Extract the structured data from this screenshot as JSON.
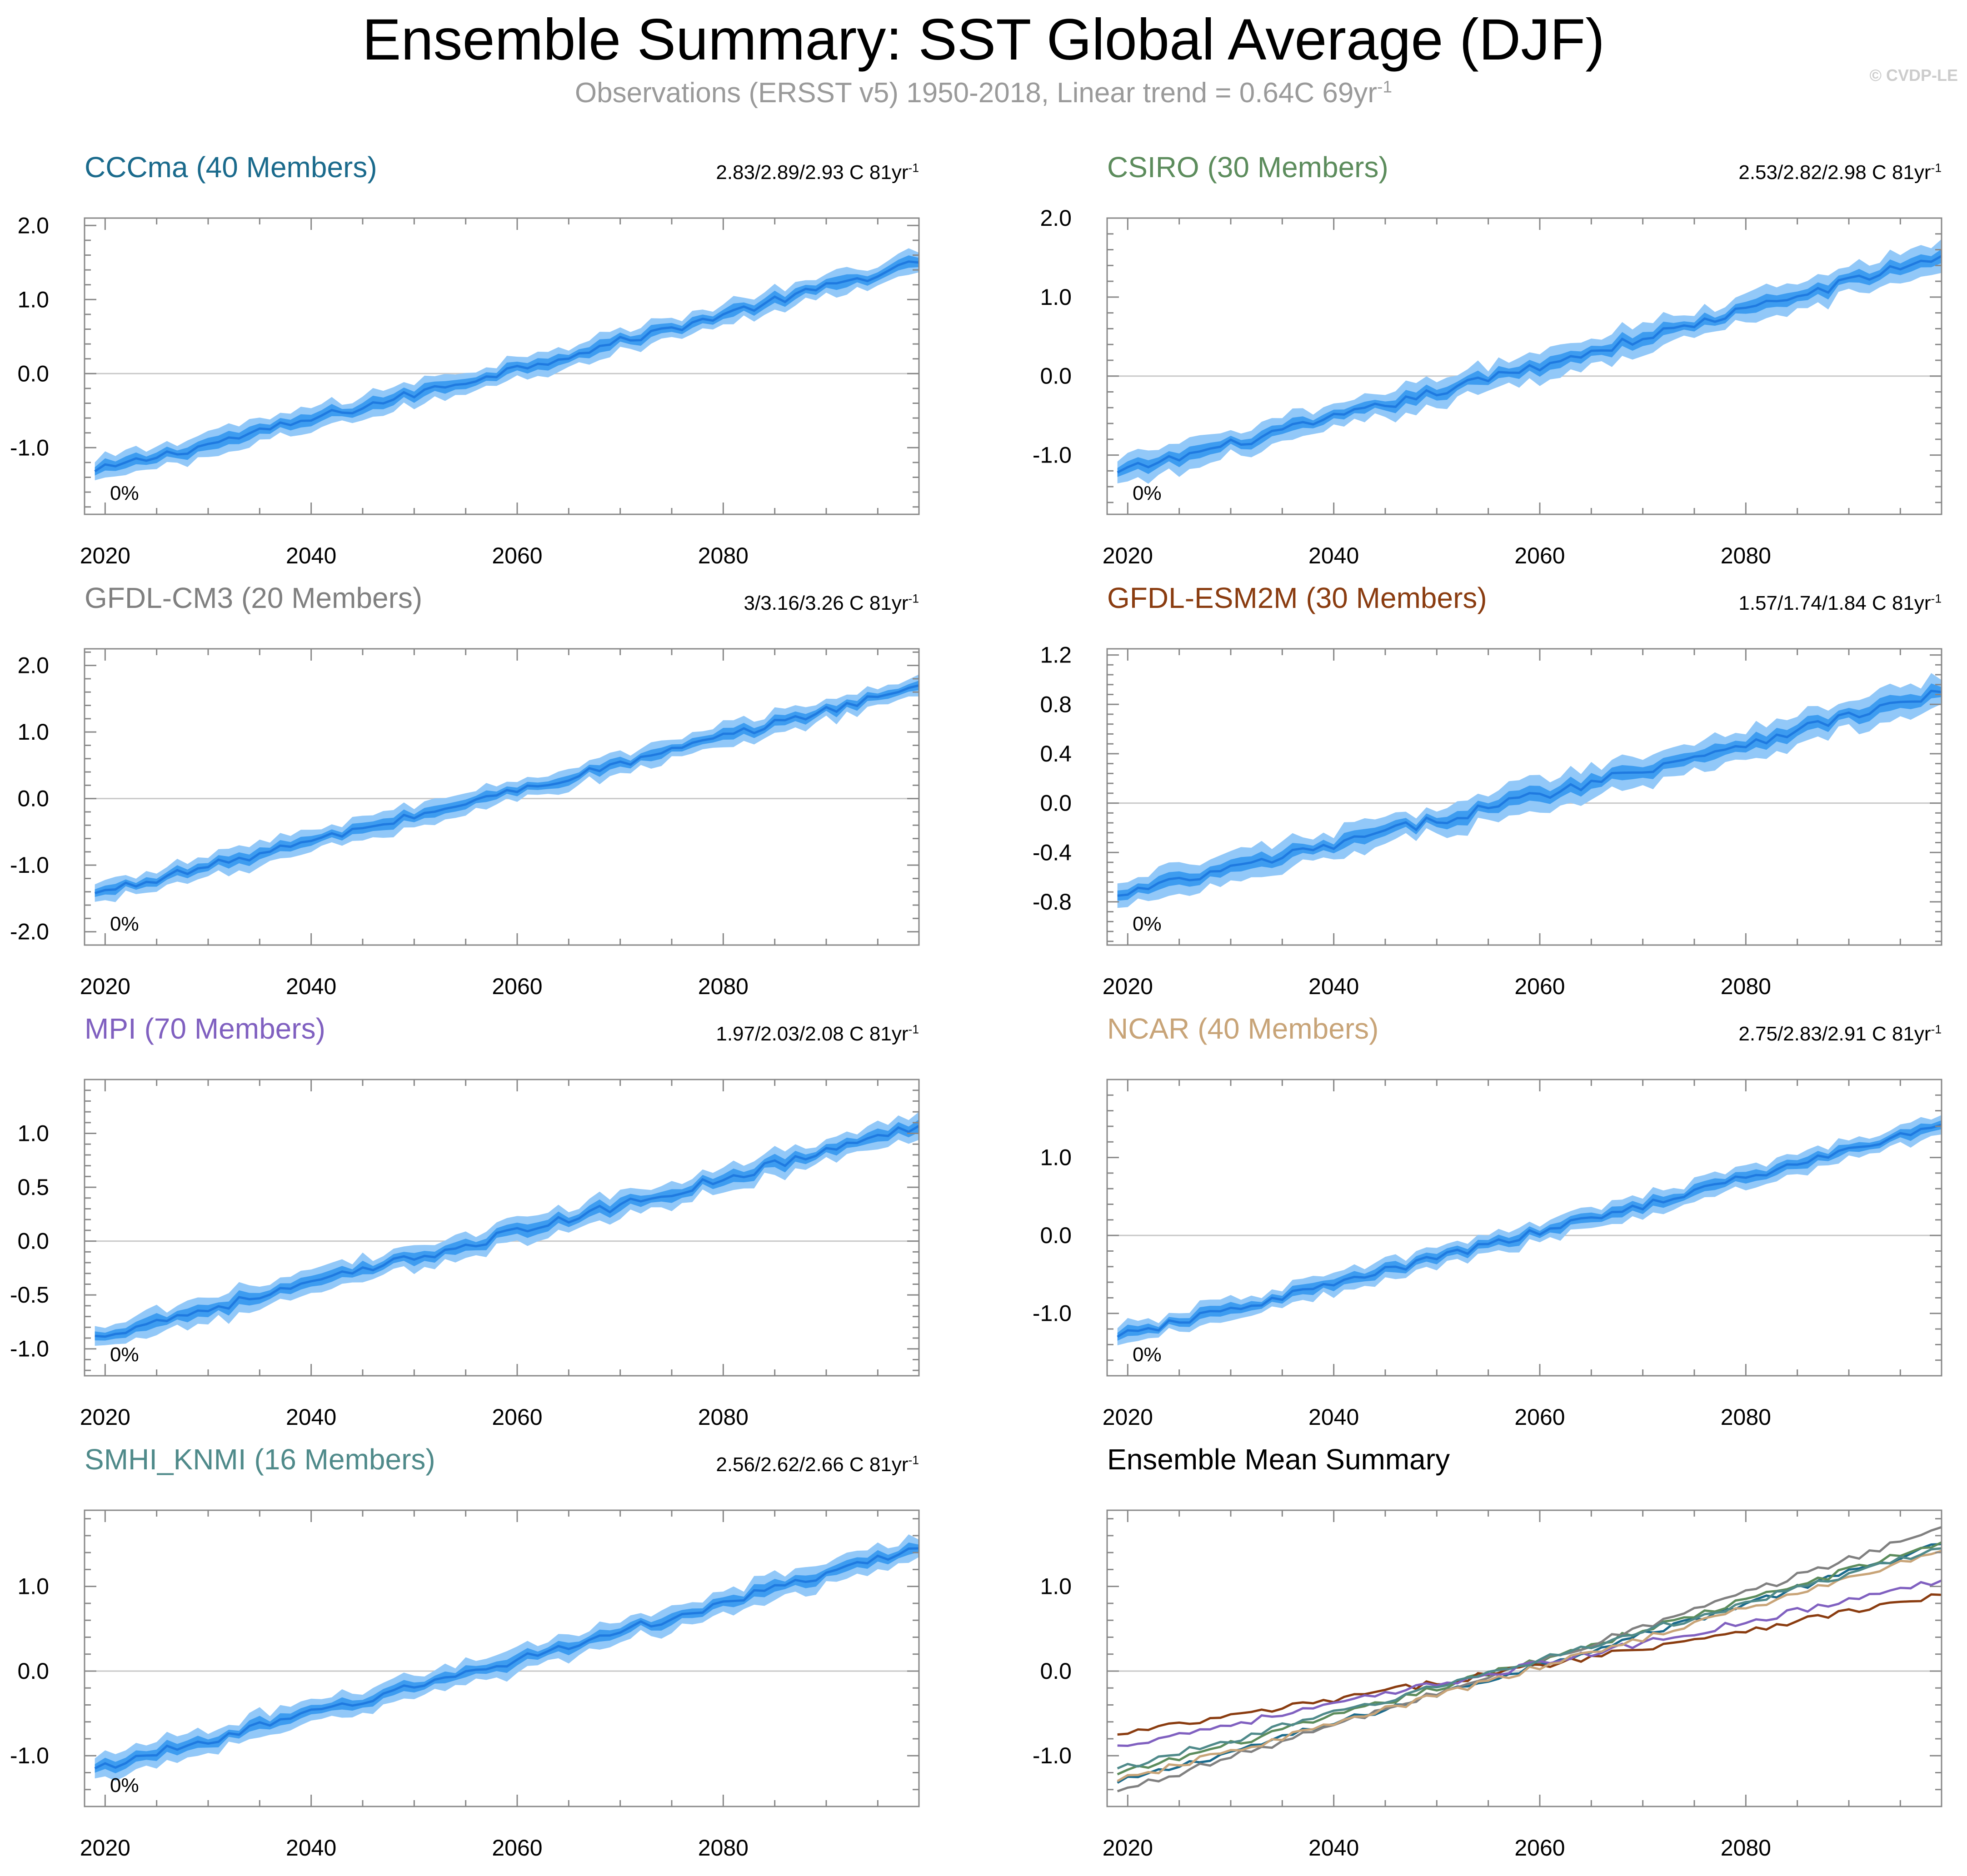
{
  "title": "Ensemble Summary: SST Global Average (DJF)",
  "subtitle": {
    "text": "Observations (ERSST v5) 1950-2018, Linear trend = 0.64C 69yr",
    "superscript": "-1"
  },
  "copyright": "© CVDP-LE",
  "colors": {
    "spread_outer": "#92c8f8",
    "spread_inner": "#3d9cf0",
    "mean_line": "#1f7ae0",
    "zero_line": "#c8c8c8",
    "axis": "#888888"
  },
  "chart_data": [
    {
      "type": "area",
      "title": "CCCma (40 Members)",
      "title_color": "#1a6a8c",
      "trend_text": "2.83/2.89/2.93 C 81yr",
      "trend_superscript": "-1",
      "percent_label": "0%",
      "xlim": [
        2018,
        2099
      ],
      "ylim": [
        -1.9,
        2.1
      ],
      "x_ticks": [
        2020,
        2040,
        2060,
        2080
      ],
      "y_ticks": [
        -1.0,
        0.0,
        1.0,
        2.0
      ],
      "y_tick_labels": [
        "-1.0",
        "0.0",
        "1.0",
        "2.0"
      ],
      "start_value": -1.32,
      "end_value": 1.5,
      "inner_spread": 0.07,
      "outer_spread": 0.15
    },
    {
      "type": "area",
      "title": "CSIRO (30 Members)",
      "title_color": "#5c8c5c",
      "trend_text": "2.53/2.82/2.98 C 81yr",
      "trend_superscript": "-1",
      "percent_label": "0%",
      "xlim": [
        2018,
        2099
      ],
      "ylim": [
        -1.75,
        2.0
      ],
      "x_ticks": [
        2020,
        2040,
        2060,
        2080
      ],
      "y_ticks": [
        -1.0,
        0.0,
        1.0,
        2.0
      ],
      "y_tick_labels": [
        "-1.0",
        "0.0",
        "1.0",
        "2.0"
      ],
      "start_value": -1.22,
      "end_value": 1.52,
      "inner_spread": 0.07,
      "outer_spread": 0.17
    },
    {
      "type": "area",
      "title": "GFDL-CM3 (20 Members)",
      "title_color": "#808080",
      "trend_text": "3/3.16/3.26 C 81yr",
      "trend_superscript": "-1",
      "percent_label": "0%",
      "xlim": [
        2018,
        2099
      ],
      "ylim": [
        -2.2,
        2.25
      ],
      "x_ticks": [
        2020,
        2040,
        2060,
        2080
      ],
      "y_ticks": [
        -2.0,
        -1.0,
        0.0,
        1.0,
        2.0
      ],
      "y_tick_labels": [
        "-2.0",
        "-1.0",
        "0.0",
        "1.0",
        "2.0"
      ],
      "start_value": -1.42,
      "end_value": 1.7,
      "inner_spread": 0.07,
      "outer_spread": 0.16
    },
    {
      "type": "area",
      "title": "GFDL-ESM2M (30 Members)",
      "title_color": "#8a3c10",
      "trend_text": "1.57/1.74/1.84 C 81yr",
      "trend_superscript": "-1",
      "percent_label": "0%",
      "xlim": [
        2018,
        2099
      ],
      "ylim": [
        -1.15,
        1.25
      ],
      "x_ticks": [
        2020,
        2040,
        2060,
        2080
      ],
      "y_ticks": [
        -0.8,
        -0.4,
        0.0,
        0.4,
        0.8,
        1.2
      ],
      "y_tick_labels": [
        "-0.8",
        "-0.4",
        "0.0",
        "0.4",
        "0.8",
        "1.2"
      ],
      "start_value": -0.75,
      "end_value": 0.9,
      "inner_spread": 0.05,
      "outer_spread": 0.12
    },
    {
      "type": "area",
      "title": "MPI (70 Members)",
      "title_color": "#8060c0",
      "trend_text": "1.97/2.03/2.08 C 81yr",
      "trend_superscript": "-1",
      "percent_label": "0%",
      "xlim": [
        2018,
        2099
      ],
      "ylim": [
        -1.25,
        1.5
      ],
      "x_ticks": [
        2020,
        2040,
        2060,
        2080
      ],
      "y_ticks": [
        -1.0,
        -0.5,
        0.0,
        0.5,
        1.0
      ],
      "y_tick_labels": [
        "-1.0",
        "-0.5",
        "0.0",
        "0.5",
        "1.0"
      ],
      "start_value": -0.88,
      "end_value": 1.07,
      "inner_spread": 0.05,
      "outer_spread": 0.11
    },
    {
      "type": "area",
      "title": "NCAR (40 Members)",
      "title_color": "#c8a478",
      "trend_text": "2.75/2.83/2.91 C 81yr",
      "trend_superscript": "-1",
      "percent_label": "0%",
      "xlim": [
        2018,
        2099
      ],
      "ylim": [
        -1.8,
        2.0
      ],
      "x_ticks": [
        2020,
        2040,
        2060,
        2080
      ],
      "y_ticks": [
        -1.0,
        0.0,
        1.0
      ],
      "y_tick_labels": [
        "-1.0",
        "0.0",
        "1.0"
      ],
      "start_value": -1.3,
      "end_value": 1.42,
      "inner_spread": 0.06,
      "outer_spread": 0.13
    },
    {
      "type": "area",
      "title": "SMHI_KNMI (16 Members)",
      "title_color": "#4f8a8a",
      "trend_text": "2.56/2.62/2.66 C 81yr",
      "trend_superscript": "-1",
      "percent_label": "0%",
      "xlim": [
        2018,
        2099
      ],
      "ylim": [
        -1.6,
        1.9
      ],
      "x_ticks": [
        2020,
        2040,
        2060,
        2080
      ],
      "y_ticks": [
        -1.0,
        0.0,
        1.0
      ],
      "y_tick_labels": [
        "-1.0",
        "0.0",
        "1.0"
      ],
      "start_value": -1.15,
      "end_value": 1.45,
      "inner_spread": 0.06,
      "outer_spread": 0.14
    },
    {
      "type": "line",
      "title": "Ensemble Mean Summary",
      "title_color": "#000000",
      "xlim": [
        2018,
        2099
      ],
      "ylim": [
        -1.6,
        1.9
      ],
      "x_ticks": [
        2020,
        2040,
        2060,
        2080
      ],
      "y_ticks": [
        -1.0,
        0.0,
        1.0
      ],
      "y_tick_labels": [
        "-1.0",
        "0.0",
        "1.0"
      ],
      "series": [
        {
          "color": "#1a6a8c",
          "start_value": -1.32,
          "end_value": 1.5
        },
        {
          "color": "#5c8c5c",
          "start_value": -1.22,
          "end_value": 1.52
        },
        {
          "color": "#808080",
          "start_value": -1.42,
          "end_value": 1.7
        },
        {
          "color": "#8a3c10",
          "start_value": -0.75,
          "end_value": 0.9
        },
        {
          "color": "#8060c0",
          "start_value": -0.88,
          "end_value": 1.07
        },
        {
          "color": "#c8a478",
          "start_value": -1.3,
          "end_value": 1.42
        },
        {
          "color": "#4f8a8a",
          "start_value": -1.15,
          "end_value": 1.45
        }
      ]
    }
  ]
}
